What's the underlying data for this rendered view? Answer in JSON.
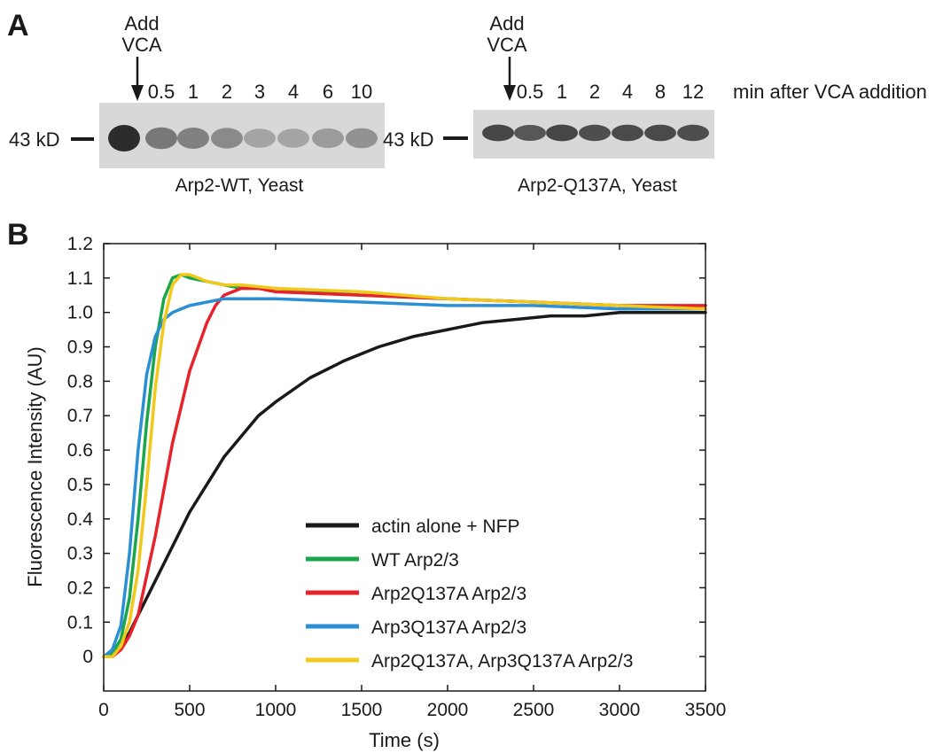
{
  "panel_a": {
    "label": "A",
    "unit_note": "min after VCA addition",
    "blots": [
      {
        "caption": "Arp2-WT, Yeast",
        "marker": "43 kD",
        "arrow_line1": "Add",
        "arrow_line2": "VCA",
        "lanes": [
          "",
          "0.5",
          "1",
          "2",
          "3",
          "4",
          "6",
          "10"
        ],
        "band_intensity": [
          1.0,
          0.55,
          0.5,
          0.45,
          0.3,
          0.3,
          0.35,
          0.4
        ]
      },
      {
        "caption": "Arp2-Q137A, Yeast",
        "marker": "43 kD",
        "arrow_line1": "Add",
        "arrow_line2": "VCA",
        "lanes": [
          "",
          "0.5",
          "1",
          "2",
          "4",
          "8",
          "12"
        ],
        "band_intensity": [
          0.85,
          0.75,
          0.85,
          0.8,
          0.82,
          0.82,
          0.8
        ]
      }
    ]
  },
  "panel_b": {
    "label": "B"
  },
  "chart_data": {
    "type": "line",
    "title": "",
    "xlabel": "Time (s)",
    "ylabel": "Fluorescence Intensity (AU)",
    "xlim": [
      0,
      3500
    ],
    "ylim": [
      -0.1,
      1.2
    ],
    "x_ticks": [
      "0",
      "500",
      "1000",
      "1500",
      "2000",
      "2500",
      "3000",
      "3500"
    ],
    "y_ticks": [
      "0",
      "0.1",
      "0.2",
      "0.3",
      "0.4",
      "0.5",
      "0.6",
      "0.7",
      "0.8",
      "0.9",
      "1.0",
      "1.1",
      "1.2"
    ],
    "legend_position": "bottom-right",
    "series": [
      {
        "name": "actin alone + NFP",
        "color": "#1a1a1a",
        "x": [
          0,
          50,
          100,
          150,
          200,
          300,
          400,
          500,
          600,
          700,
          800,
          900,
          1000,
          1200,
          1400,
          1600,
          1800,
          2000,
          2200,
          2400,
          2600,
          2800,
          3000,
          3200,
          3500
        ],
        "y": [
          0.0,
          0.0,
          0.03,
          0.07,
          0.12,
          0.22,
          0.32,
          0.42,
          0.5,
          0.58,
          0.64,
          0.7,
          0.74,
          0.81,
          0.86,
          0.9,
          0.93,
          0.95,
          0.97,
          0.98,
          0.99,
          0.99,
          1.0,
          1.0,
          1.0
        ]
      },
      {
        "name": "WT Arp2/3",
        "color": "#1aa64a",
        "x": [
          0,
          50,
          100,
          150,
          200,
          250,
          300,
          350,
          400,
          450,
          500,
          600,
          700,
          800,
          1000,
          1500,
          2000,
          2500,
          3000,
          3500
        ],
        "y": [
          0.0,
          0.01,
          0.05,
          0.17,
          0.4,
          0.68,
          0.9,
          1.04,
          1.1,
          1.11,
          1.1,
          1.09,
          1.08,
          1.07,
          1.07,
          1.05,
          1.04,
          1.03,
          1.02,
          1.01
        ]
      },
      {
        "name": "Arp2Q137A Arp2/3",
        "color": "#e8222a",
        "x": [
          0,
          50,
          100,
          150,
          200,
          300,
          400,
          500,
          600,
          650,
          700,
          750,
          800,
          900,
          1000,
          1500,
          2000,
          2500,
          3000,
          3500
        ],
        "y": [
          0.0,
          0.0,
          0.02,
          0.06,
          0.12,
          0.35,
          0.62,
          0.83,
          0.97,
          1.02,
          1.05,
          1.06,
          1.07,
          1.07,
          1.06,
          1.05,
          1.04,
          1.03,
          1.02,
          1.02
        ]
      },
      {
        "name": "Arp3Q137A Arp2/3",
        "color": "#2b8fd6",
        "x": [
          0,
          50,
          100,
          150,
          200,
          250,
          300,
          350,
          400,
          450,
          500,
          600,
          700,
          800,
          1000,
          1500,
          2000,
          2500,
          3000,
          3500
        ],
        "y": [
          0.0,
          0.02,
          0.09,
          0.3,
          0.6,
          0.82,
          0.93,
          0.98,
          1.0,
          1.01,
          1.02,
          1.03,
          1.04,
          1.04,
          1.04,
          1.03,
          1.02,
          1.02,
          1.01,
          1.01
        ]
      },
      {
        "name": "Arp2Q137A, Arp3Q137A Arp2/3",
        "color": "#f2c81a",
        "x": [
          0,
          50,
          100,
          150,
          200,
          250,
          300,
          350,
          400,
          450,
          500,
          550,
          600,
          700,
          800,
          1000,
          1500,
          2000,
          2500,
          3000,
          3500
        ],
        "y": [
          0.0,
          0.0,
          0.03,
          0.1,
          0.25,
          0.5,
          0.78,
          0.97,
          1.08,
          1.11,
          1.11,
          1.1,
          1.09,
          1.08,
          1.08,
          1.07,
          1.06,
          1.04,
          1.03,
          1.02,
          1.01
        ]
      }
    ]
  }
}
